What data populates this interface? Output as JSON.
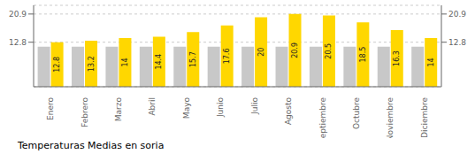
{
  "chart_data": {
    "type": "bar",
    "title": "Temperaturas Medias en soria",
    "categories": [
      "Enero",
      "Febrero",
      "Marzo",
      "Abril",
      "Mayo",
      "Junio",
      "Julio",
      "Agosto",
      "Septiembre",
      "Octubre",
      "Noviembre",
      "Diciembre"
    ],
    "series": [
      {
        "color": "#C8C8C8",
        "values": [
          11.5,
          11.5,
          11.5,
          11.5,
          11.5,
          11.5,
          11.5,
          11.5,
          11.5,
          11.5,
          11.5,
          11.5
        ]
      },
      {
        "color": "#FFD700",
        "values": [
          12.8,
          13.2,
          14.0,
          14.4,
          15.7,
          17.6,
          20.0,
          20.9,
          20.5,
          18.5,
          16.3,
          14.0
        ],
        "data_labels": true
      }
    ],
    "ylim": [
      0,
      23.408
    ],
    "yticks": [
      12.8,
      20.9
    ],
    "y2lim": [
      0,
      23.408
    ],
    "y2ticks": [
      12.8,
      20.9
    ],
    "grid": true
  }
}
